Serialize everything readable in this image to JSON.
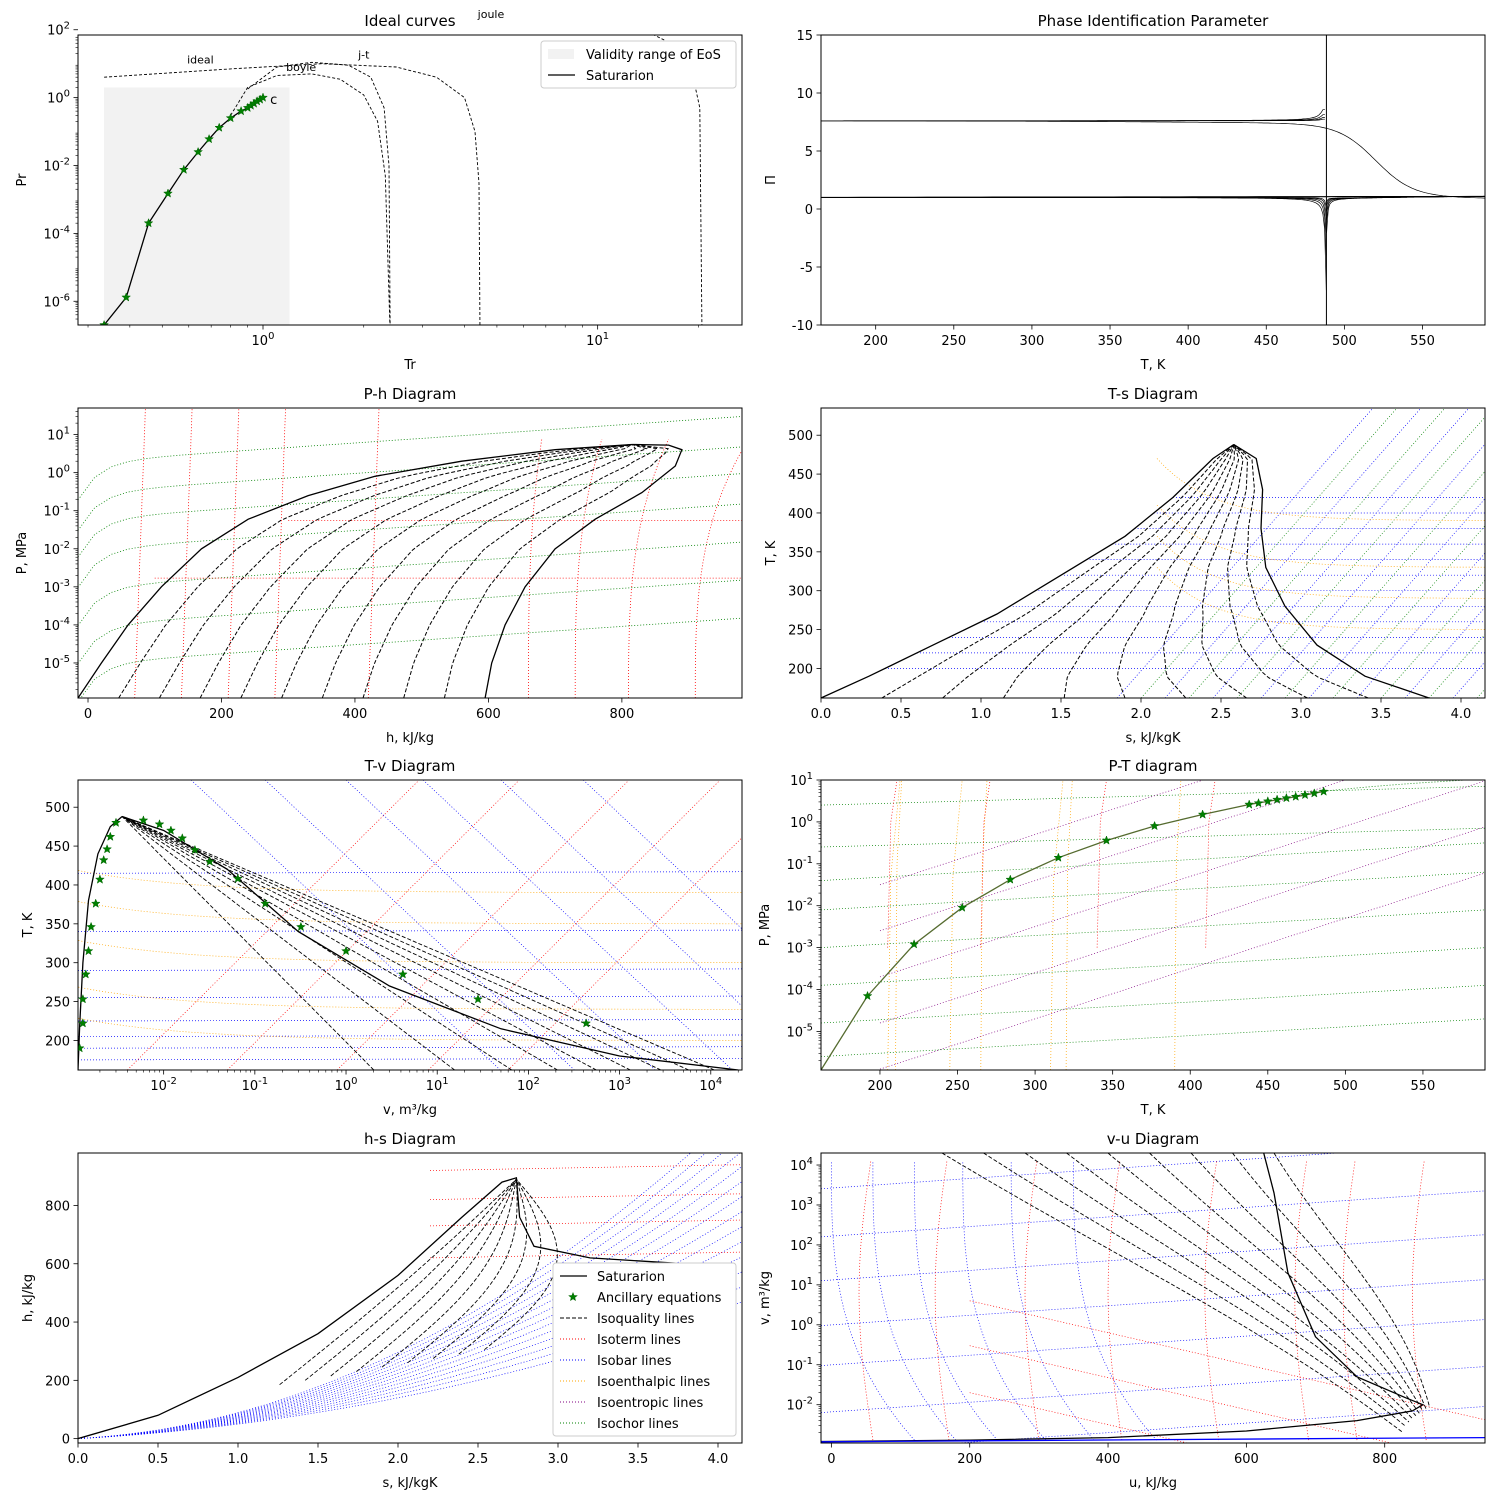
{
  "chart_data": [
    {
      "type": "line",
      "title": "Ideal curves",
      "xlabel": "Tr",
      "ylabel": "Pr",
      "xscale": "log",
      "yscale": "log",
      "xlim": [
        0.28,
        27
      ],
      "ylim": [
        2e-07,
        70
      ],
      "xticks": [
        1,
        10
      ],
      "xticklabels": [
        "10^0",
        "10^1"
      ],
      "yticks": [
        1e-06,
        0.0001,
        0.01,
        1,
        100
      ],
      "yticklabels": [
        "10^-6",
        "10^-4",
        "10^-2",
        "10^0",
        "10^2"
      ],
      "validity_range": {
        "tr": [
          0.335,
          1.2
        ],
        "pr": [
          2e-07,
          2
        ]
      },
      "saturation_markers": {
        "tr": [
          0.335,
          0.39,
          0.455,
          0.52,
          0.58,
          0.64,
          0.69,
          0.74,
          0.8,
          0.86,
          0.9,
          0.92,
          0.94,
          0.96,
          0.98,
          1.0
        ],
        "pr": [
          2e-07,
          1.3e-06,
          0.0002,
          0.0015,
          0.0075,
          0.025,
          0.06,
          0.13,
          0.25,
          0.4,
          0.5,
          0.58,
          0.67,
          0.78,
          0.88,
          1.0
        ]
      },
      "critical_label": "c",
      "curve_labels": {
        "ideal": "ideal",
        "boyle": "boyle",
        "jt": "j-t",
        "joule": "joule"
      },
      "curve_label_pos": {
        "ideal": [
          0.65,
          10
        ],
        "boyle": [
          1.3,
          6
        ],
        "jt": [
          2.0,
          14
        ],
        "joule": [
          4.8,
          220
        ]
      },
      "curves": {
        "joule": {
          "tr": [
            0.335,
            1,
            3,
            6,
            10,
            14,
            17,
            19,
            20.2,
            20.5
          ],
          "pr": [
            220,
            225,
            225,
            210,
            160,
            90,
            35,
            8,
            0.5,
            1e-07
          ]
        },
        "ideal": {
          "tr": [
            0.335,
            0.8,
            1.5,
            2.5,
            3.3,
            4.0,
            4.3,
            4.42,
            4.45
          ],
          "pr": [
            4,
            7,
            10,
            8,
            4,
            1,
            0.1,
            0.003,
            1e-07
          ]
        },
        "jt": {
          "tr": [
            0.9,
            1.1,
            1.4,
            1.8,
            2.1,
            2.3,
            2.38,
            2.4
          ],
          "pr": [
            1.8,
            8,
            11,
            9,
            4,
            0.5,
            0.01,
            1e-07
          ]
        },
        "boyle": {
          "tr": [
            0.8,
            0.9,
            1.1,
            1.4,
            1.7,
            2.0,
            2.2,
            2.32,
            2.4
          ],
          "pr": [
            0.3,
            2,
            4.5,
            5,
            3.5,
            1.2,
            0.2,
            0.005,
            1e-07
          ]
        }
      },
      "legend": [
        "Validity range of EoS",
        "Saturarion"
      ],
      "legend_position": "upper right"
    },
    {
      "type": "line",
      "title": "Phase Identification Parameter",
      "xlabel": "T, K",
      "ylabel": "Π",
      "xlim": [
        165,
        590
      ],
      "ylim": [
        -10,
        15
      ],
      "xticks": [
        200,
        250,
        300,
        350,
        400,
        450,
        500,
        550
      ],
      "yticks": [
        -10,
        -5,
        0,
        5,
        10,
        15
      ],
      "critical_temperature": 488.5
    },
    {
      "type": "line",
      "title": "P-h Diagram",
      "xlabel": "h, kJ/kg",
      "ylabel": "P, MPa",
      "yscale": "log",
      "xlim": [
        -15,
        980
      ],
      "ylim": [
        1.2e-06,
        50
      ],
      "xticks": [
        0,
        200,
        400,
        600,
        800
      ],
      "yticks": [
        1e-05,
        0.0001,
        0.001,
        0.01,
        0.1,
        1,
        10
      ],
      "yticklabels": [
        "10^-5",
        "10^-4",
        "10^-3",
        "10^-2",
        "10^-1",
        "10^0",
        "10^1"
      ],
      "saturation_liquid": {
        "x": [
          -15,
          20,
          60,
          110,
          170,
          240,
          330,
          430,
          560,
          700,
          815
        ],
        "y": [
          1.2e-06,
          1e-05,
          0.0001,
          0.001,
          0.01,
          0.06,
          0.25,
          0.8,
          2,
          4,
          5.5
        ]
      },
      "saturation_vapor": {
        "x": [
          595,
          605,
          625,
          655,
          700,
          760,
          830,
          880,
          890,
          870,
          815
        ],
        "y": [
          1.2e-06,
          1e-05,
          0.0001,
          0.001,
          0.01,
          0.06,
          0.3,
          1.5,
          4,
          5.3,
          5.5
        ]
      }
    },
    {
      "type": "line",
      "title": "T-s Diagram",
      "xlabel": "s, kJ/kgK",
      "ylabel": "T, K",
      "xlim": [
        0,
        4.15
      ],
      "ylim": [
        162,
        535
      ],
      "xticks": [
        0,
        0.5,
        1.0,
        1.5,
        2.0,
        2.5,
        3.0,
        3.5,
        4.0
      ],
      "xticklabels": [
        "0.0",
        "0.5",
        "1.0",
        "1.5",
        "2.0",
        "2.5",
        "3.0",
        "3.5",
        "4.0"
      ],
      "yticks": [
        200,
        250,
        300,
        350,
        400,
        450,
        500
      ],
      "saturation_liquid": {
        "x": [
          0,
          0.3,
          0.7,
          1.1,
          1.5,
          1.9,
          2.2,
          2.45,
          2.58
        ],
        "y": [
          162,
          190,
          230,
          270,
          320,
          370,
          420,
          470,
          488
        ]
      },
      "saturation_vapor": {
        "x": [
          3.8,
          3.4,
          3.1,
          2.9,
          2.78,
          2.75,
          2.76,
          2.72,
          2.58
        ],
        "y": [
          162,
          190,
          230,
          280,
          330,
          380,
          430,
          470,
          488
        ]
      }
    },
    {
      "type": "line",
      "title": "T-v Diagram",
      "xlabel": "v, m³/kg",
      "ylabel": "T, K",
      "xscale": "log",
      "xlim": [
        0.00115,
        22000
      ],
      "ylim": [
        162,
        535
      ],
      "xticks": [
        0.01,
        0.1,
        1,
        10,
        100,
        1000,
        10000
      ],
      "xticklabels": [
        "10^-2",
        "10^-1",
        "10^0",
        "10^1",
        "10^2",
        "10^3",
        "10^4"
      ],
      "yticks": [
        200,
        250,
        300,
        350,
        400,
        450,
        500
      ],
      "saturation_liquid": {
        "x": [
          0.00115,
          0.0012,
          0.0013,
          0.0015,
          0.0019,
          0.0026,
          0.0035
        ],
        "y": [
          162,
          220,
          300,
          380,
          440,
          475,
          488
        ]
      },
      "saturation_vapor": {
        "x": [
          0.0035,
          0.01,
          0.05,
          0.3,
          3,
          50,
          1000,
          20000
        ],
        "y": [
          488,
          470,
          420,
          340,
          270,
          215,
          180,
          162
        ]
      },
      "markers_liquid": {
        "x": [
          0.0012,
          0.0013,
          0.0013,
          0.0014,
          0.0015,
          0.0016,
          0.0018,
          0.002,
          0.0022,
          0.0024,
          0.0026,
          0.003
        ],
        "y": [
          190,
          222,
          253,
          285,
          315,
          346,
          376,
          407,
          432,
          446,
          462,
          480
        ]
      },
      "markers_vapor": {
        "x": [
          0.006,
          0.009,
          0.012,
          0.016,
          0.022,
          0.032,
          0.065,
          0.13,
          0.32,
          1.0,
          4.2,
          28,
          430
        ],
        "y": [
          483,
          478,
          470,
          460,
          445,
          430,
          408,
          376,
          346,
          315,
          285,
          253,
          222
        ]
      }
    },
    {
      "type": "line",
      "title": "P-T diagram",
      "xlabel": "T, K",
      "ylabel": "P, MPa",
      "yscale": "log",
      "xlim": [
        162,
        590
      ],
      "ylim": [
        1.2e-06,
        10
      ],
      "xticks": [
        200,
        250,
        300,
        350,
        400,
        450,
        500,
        550
      ],
      "yticks": [
        1e-05,
        0.0001,
        0.001,
        0.01,
        0.1,
        1,
        10
      ],
      "yticklabels": [
        "10^-5",
        "10^-4",
        "10^-3",
        "10^-2",
        "10^-1",
        "10^0",
        "10^1"
      ],
      "saturation": {
        "x": [
          162,
          192,
          222,
          253,
          284,
          315,
          346,
          377,
          408,
          438,
          470,
          488
        ],
        "y": [
          1.2e-06,
          7e-05,
          0.0012,
          0.009,
          0.042,
          0.14,
          0.36,
          0.8,
          1.5,
          2.6,
          4.1,
          5.5
        ]
      },
      "markers": {
        "x": [
          192,
          222,
          253,
          284,
          315,
          346,
          377,
          408,
          438,
          444,
          450,
          456,
          462,
          468,
          474,
          480,
          486
        ],
        "y": [
          7e-05,
          0.0012,
          0.009,
          0.042,
          0.14,
          0.36,
          0.8,
          1.5,
          2.6,
          2.8,
          3.1,
          3.4,
          3.7,
          4.0,
          4.4,
          4.8,
          5.3
        ]
      }
    },
    {
      "type": "line",
      "title": "h-s Diagram",
      "xlabel": "s, kJ/kgK",
      "ylabel": "h, kJ/kg",
      "xlim": [
        0,
        4.15
      ],
      "ylim": [
        -15,
        980
      ],
      "xticks": [
        0,
        0.5,
        1.0,
        1.5,
        2.0,
        2.5,
        3.0,
        3.5,
        4.0
      ],
      "xticklabels": [
        "0.0",
        "0.5",
        "1.0",
        "1.5",
        "2.0",
        "2.5",
        "3.0",
        "3.5",
        "4.0"
      ],
      "yticks": [
        0,
        200,
        400,
        600,
        800
      ],
      "saturation": {
        "x": [
          0,
          0.5,
          1.0,
          1.5,
          2.0,
          2.4,
          2.65,
          2.74,
          2.76,
          2.85,
          3.2,
          3.8
        ],
        "y": [
          0,
          80,
          210,
          360,
          560,
          760,
          880,
          895,
          760,
          660,
          620,
          600
        ]
      },
      "legend": [
        "Saturarion",
        "Ancillary equations",
        "Isoquality lines",
        "Isoterm lines",
        "Isobar lines",
        "Isoenthalpic lines",
        "Isoentropic lines",
        "Isochor lines"
      ],
      "legend_position": "lower right"
    },
    {
      "type": "line",
      "title": "v-u Diagram",
      "xlabel": "u, kJ/kg",
      "ylabel": "v, m³/kg",
      "yscale": "log",
      "xlim": [
        -15,
        945
      ],
      "ylim": [
        0.0011,
        20000
      ],
      "xticks": [
        0,
        200,
        400,
        600,
        800
      ],
      "yticks": [
        0.01,
        0.1,
        1,
        10,
        100,
        1000,
        10000
      ],
      "yticklabels": [
        "10^-2",
        "10^-1",
        "10^0",
        "10^1",
        "10^2",
        "10^3",
        "10^4"
      ],
      "saturation": {
        "x": [
          -15,
          200,
          400,
          600,
          760,
          840,
          855,
          830,
          760,
          700,
          660,
          640,
          625
        ],
        "y": [
          0.0012,
          0.0013,
          0.0015,
          0.0022,
          0.004,
          0.007,
          0.01,
          0.015,
          0.05,
          0.5,
          20,
          2000,
          20000
        ]
      }
    }
  ],
  "colors": {
    "saturation": "#000000",
    "markers": "#008000",
    "isoquality": "#000000",
    "isotherm": "#ff0000",
    "isobar": "#0000ff",
    "isoenthalpic": "#ffa500",
    "isoentropic": "#800080",
    "isochor": "#008000",
    "validity": "#f2f2f2"
  }
}
